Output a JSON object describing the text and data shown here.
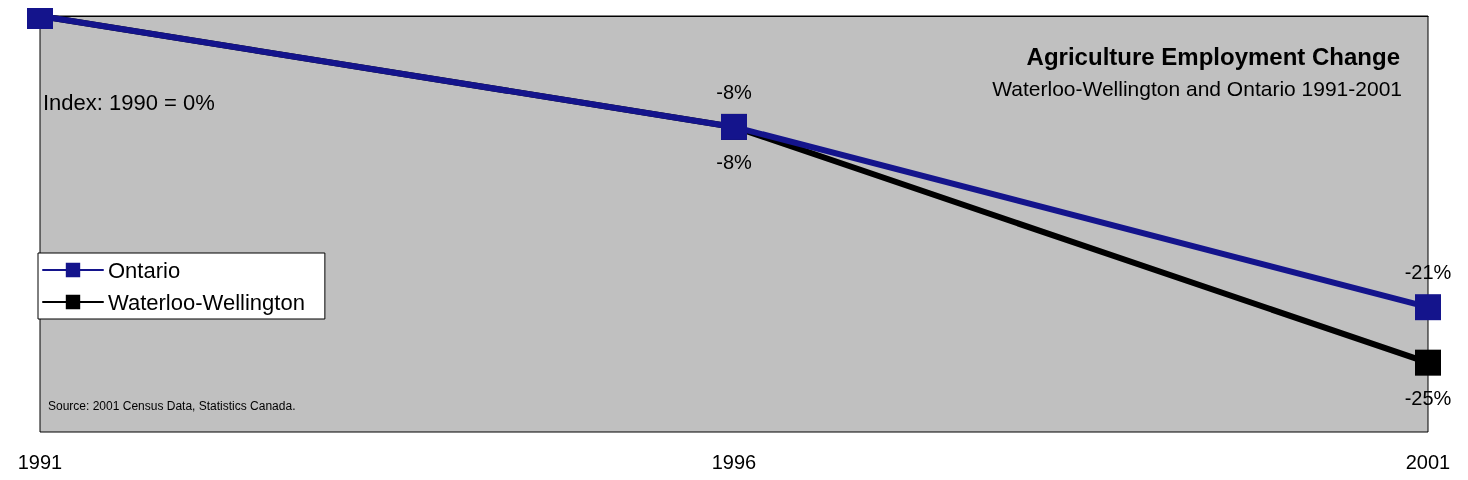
{
  "chart_data": {
    "type": "line",
    "title": "Agriculture Employment Change",
    "subtitle": "Waterloo-Wellington and Ontario 1991-2001",
    "categories": [
      "1991",
      "1996",
      "2001"
    ],
    "series": [
      {
        "name": "Ontario",
        "color": "#14148c",
        "values": [
          0,
          -8,
          -21
        ],
        "value_labels": [
          null,
          "-8%",
          "-21%"
        ]
      },
      {
        "name": "Waterloo-Wellington",
        "color": "#000000",
        "values": [
          0,
          -8,
          -25
        ],
        "value_labels": [
          null,
          "-8%",
          "-25%"
        ]
      }
    ],
    "ylim": [
      -30,
      0
    ],
    "tick_labels": "x",
    "grid": false,
    "legend": "bottom left",
    "marker": "square",
    "line_style": "solid",
    "annotations": [
      "Index: 1990 = 0%",
      "Source: 2001 Census Data, Statistics Canada."
    ]
  }
}
